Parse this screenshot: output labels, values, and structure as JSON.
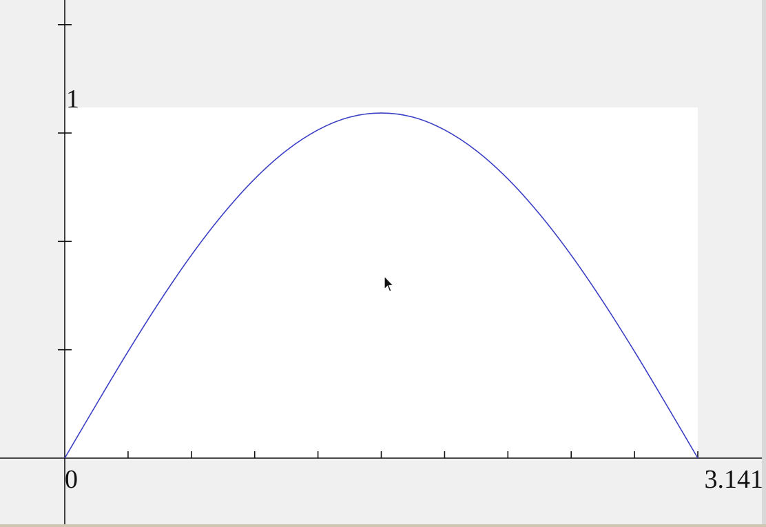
{
  "chart_data": {
    "type": "line",
    "title": "",
    "xlabel": "",
    "ylabel": "",
    "xlim": [
      0,
      3.1416
    ],
    "ylim": [
      0,
      1.016
    ],
    "x_tick_labels": [
      "0",
      "3.141"
    ],
    "y_tick_labels": [
      "1"
    ],
    "x_minor_ticks": [
      0.3142,
      0.6283,
      0.9425,
      1.2566,
      1.5708,
      1.885,
      2.1991,
      2.5133,
      2.8274
    ],
    "y_minor_ticks": [
      0.314,
      0.628,
      0.942,
      1.256
    ],
    "series": [
      {
        "x": [
          0,
          0.1571,
          0.3142,
          0.4712,
          0.6283,
          0.7854,
          0.9425,
          1.0996,
          1.2566,
          1.4137,
          1.5708,
          1.7279,
          1.885,
          2.042,
          2.1991,
          2.3562,
          2.5133,
          2.6704,
          2.8274,
          2.9845,
          3.1416
        ],
        "y": [
          0,
          0.156,
          0.309,
          0.454,
          0.588,
          0.707,
          0.809,
          0.891,
          0.951,
          0.988,
          1.0,
          0.988,
          0.951,
          0.891,
          0.809,
          0.707,
          0.588,
          0.454,
          0.309,
          0.156,
          0
        ]
      }
    ],
    "grid": false,
    "colors": {
      "line": "#3a3fc4",
      "plot_fill": "#ffffff",
      "background": "#f0f0f0",
      "axis": "#111111"
    }
  }
}
